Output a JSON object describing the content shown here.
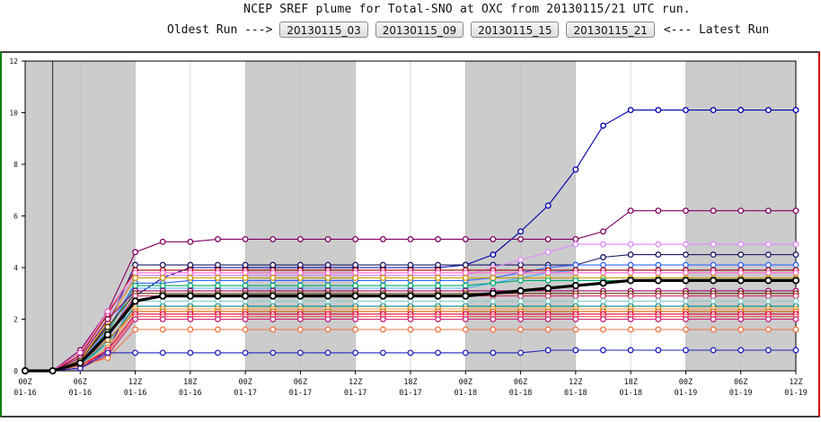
{
  "header": {
    "title": "NCEP SREF plume for Total-SNO at OXC from 20130115/21 UTC run.",
    "oldest_label": "Oldest Run --->",
    "latest_label": "<--- Latest Run",
    "runs": [
      "20130115_03",
      "20130115_09",
      "20130115_15",
      "20130115_21"
    ]
  },
  "colors": {
    "shade": "#cccccc",
    "frame": "#000000",
    "page_border_left": "#008000",
    "page_border_right": "#cc0000",
    "mean": "#000000"
  },
  "chart_data": {
    "type": "line",
    "title": "",
    "xlabel": "",
    "ylabel": "",
    "ylim": [
      0,
      12
    ],
    "yticks": [
      0,
      2,
      4,
      6,
      8,
      10,
      12
    ],
    "x_start_hour": 0,
    "x_step_hours": 3,
    "x_end_hour": 84,
    "x_ticks": [
      {
        "hour": 0,
        "line1": "00Z",
        "line2": "01-16"
      },
      {
        "hour": 6,
        "line1": "06Z",
        "line2": "01-16"
      },
      {
        "hour": 12,
        "line1": "12Z",
        "line2": "01-16"
      },
      {
        "hour": 18,
        "line1": "18Z",
        "line2": "01-16"
      },
      {
        "hour": 24,
        "line1": "00Z",
        "line2": "01-17"
      },
      {
        "hour": 30,
        "line1": "06Z",
        "line2": "01-17"
      },
      {
        "hour": 36,
        "line1": "12Z",
        "line2": "01-17"
      },
      {
        "hour": 42,
        "line1": "18Z",
        "line2": "01-17"
      },
      {
        "hour": 48,
        "line1": "00Z",
        "line2": "01-18"
      },
      {
        "hour": 54,
        "line1": "06Z",
        "line2": "01-18"
      },
      {
        "hour": 60,
        "line1": "12Z",
        "line2": "01-18"
      },
      {
        "hour": 66,
        "line1": "18Z",
        "line2": "01-18"
      },
      {
        "hour": 72,
        "line1": "00Z",
        "line2": "01-19"
      },
      {
        "hour": 78,
        "line1": "06Z",
        "line2": "01-19"
      },
      {
        "hour": 84,
        "line1": "12Z",
        "line2": "01-19"
      }
    ],
    "shaded_spans": [
      [
        0,
        12
      ],
      [
        24,
        36
      ],
      [
        48,
        60
      ],
      [
        72,
        84
      ]
    ],
    "vline_hour": 3,
    "series": [
      {
        "color": "#0000aa",
        "values": [
          0,
          0,
          0.1,
          0.8,
          2.9,
          3.6,
          4.0,
          4.0,
          4.0,
          4.0,
          4.0,
          4.0,
          4.0,
          4.0,
          4.0,
          4.0,
          4.1,
          4.5,
          5.4,
          6.4,
          7.8,
          9.5,
          10.1,
          10.1,
          10.1,
          10.1,
          10.1,
          10.1,
          10.1
        ]
      },
      {
        "color": "#800060",
        "values": [
          0,
          0,
          0.8,
          2.3,
          4.6,
          5.0,
          5.0,
          5.1,
          5.1,
          5.1,
          5.1,
          5.1,
          5.1,
          5.1,
          5.1,
          5.1,
          5.1,
          5.1,
          5.1,
          5.1,
          5.1,
          5.4,
          6.2,
          6.2,
          6.2,
          6.2,
          6.2,
          6.2,
          6.2
        ]
      },
      {
        "color": "#1a1a66",
        "values": [
          0,
          0,
          0.4,
          1.8,
          4.1,
          4.1,
          4.1,
          4.1,
          4.1,
          4.1,
          4.1,
          4.1,
          4.1,
          4.1,
          4.1,
          4.1,
          4.1,
          4.1,
          4.1,
          4.1,
          4.1,
          4.4,
          4.5,
          4.5,
          4.5,
          4.5,
          4.5,
          4.5,
          4.5
        ]
      },
      {
        "color": "#dd88ff",
        "values": [
          0,
          0,
          0.5,
          2.0,
          3.7,
          3.7,
          3.7,
          3.7,
          3.7,
          3.7,
          3.7,
          3.7,
          3.7,
          3.7,
          3.7,
          3.7,
          3.7,
          4.0,
          4.3,
          4.6,
          4.9,
          4.9,
          4.9,
          4.9,
          4.9,
          4.9,
          4.9,
          4.9,
          4.9
        ]
      },
      {
        "color": "#3366ff",
        "values": [
          0,
          0,
          0.3,
          1.6,
          3.4,
          3.4,
          3.5,
          3.5,
          3.5,
          3.5,
          3.5,
          3.5,
          3.5,
          3.5,
          3.5,
          3.5,
          3.5,
          3.6,
          3.8,
          4.0,
          4.1,
          4.1,
          4.1,
          4.1,
          4.1,
          4.1,
          4.1,
          4.1,
          4.1
        ]
      },
      {
        "color": "#44aaff",
        "values": [
          0,
          0,
          0.2,
          1.2,
          3.2,
          3.2,
          3.2,
          3.2,
          3.2,
          3.2,
          3.2,
          3.2,
          3.2,
          3.2,
          3.2,
          3.2,
          3.2,
          3.4,
          3.6,
          3.8,
          3.9,
          3.9,
          3.9,
          3.9,
          3.9,
          3.9,
          3.9,
          3.9,
          3.9
        ]
      },
      {
        "color": "#aa0000",
        "values": [
          0,
          0,
          0.6,
          2.2,
          3.9,
          3.9,
          3.9,
          3.9,
          3.9,
          3.9,
          3.9,
          3.9,
          3.9,
          3.9,
          3.9,
          3.9,
          3.9,
          3.9,
          3.9,
          3.9,
          3.9,
          3.9,
          3.9,
          3.9,
          3.9,
          3.9,
          3.9,
          3.9,
          3.9
        ]
      },
      {
        "color": "#ff66cc",
        "values": [
          0,
          0,
          0.7,
          2.3,
          3.8,
          3.8,
          3.8,
          3.8,
          3.8,
          3.8,
          3.8,
          3.8,
          3.8,
          3.8,
          3.8,
          3.8,
          3.8,
          3.8,
          3.8,
          3.8,
          3.8,
          3.8,
          3.8,
          3.8,
          3.8,
          3.8,
          3.8,
          3.8,
          3.8
        ]
      },
      {
        "color": "#cc9900",
        "values": [
          0,
          0,
          0.4,
          1.9,
          3.6,
          3.6,
          3.6,
          3.6,
          3.6,
          3.6,
          3.6,
          3.6,
          3.6,
          3.6,
          3.6,
          3.6,
          3.6,
          3.6,
          3.6,
          3.6,
          3.6,
          3.6,
          3.6,
          3.6,
          3.6,
          3.6,
          3.6,
          3.6,
          3.6
        ]
      },
      {
        "color": "#00aa66",
        "values": [
          0,
          0,
          0.3,
          1.5,
          3.3,
          3.3,
          3.3,
          3.3,
          3.3,
          3.3,
          3.3,
          3.3,
          3.3,
          3.3,
          3.3,
          3.3,
          3.3,
          3.4,
          3.5,
          3.5,
          3.5,
          3.5,
          3.5,
          3.5,
          3.5,
          3.5,
          3.5,
          3.5,
          3.5
        ]
      },
      {
        "color": "#990066",
        "values": [
          0,
          0,
          0.5,
          2.0,
          3.1,
          3.1,
          3.1,
          3.1,
          3.1,
          3.1,
          3.1,
          3.1,
          3.1,
          3.1,
          3.1,
          3.1,
          3.1,
          3.1,
          3.1,
          3.1,
          3.1,
          3.1,
          3.1,
          3.1,
          3.1,
          3.1,
          3.1,
          3.1,
          3.1
        ]
      },
      {
        "color": "#663300",
        "values": [
          0,
          0,
          0.4,
          1.7,
          3.0,
          3.0,
          3.0,
          3.0,
          3.0,
          3.0,
          3.0,
          3.0,
          3.0,
          3.0,
          3.0,
          3.0,
          3.0,
          3.0,
          3.0,
          3.0,
          3.0,
          3.0,
          3.0,
          3.0,
          3.0,
          3.0,
          3.0,
          3.0,
          3.0
        ]
      },
      {
        "color": "#cc3366",
        "values": [
          0,
          0,
          0.3,
          1.4,
          2.9,
          2.9,
          2.9,
          2.9,
          2.9,
          2.9,
          2.9,
          2.9,
          2.9,
          2.9,
          2.9,
          2.9,
          2.9,
          2.9,
          2.9,
          2.9,
          2.9,
          2.9,
          2.9,
          2.9,
          2.9,
          2.9,
          2.9,
          2.9,
          2.9
        ]
      },
      {
        "color": "#008888",
        "values": [
          0,
          0,
          0.2,
          1.1,
          2.5,
          2.5,
          2.5,
          2.5,
          2.5,
          2.5,
          2.5,
          2.5,
          2.5,
          2.5,
          2.5,
          2.5,
          2.5,
          2.5,
          2.5,
          2.5,
          2.5,
          2.5,
          2.5,
          2.5,
          2.5,
          2.5,
          2.5,
          2.5,
          2.5
        ]
      },
      {
        "color": "#88cccc",
        "values": [
          0,
          0,
          0.2,
          1.0,
          2.7,
          2.7,
          2.7,
          2.7,
          2.7,
          2.7,
          2.7,
          2.7,
          2.7,
          2.7,
          2.7,
          2.7,
          2.7,
          2.7,
          2.7,
          2.7,
          2.7,
          2.7,
          2.7,
          2.7,
          2.7,
          2.7,
          2.7,
          2.7,
          2.7
        ]
      },
      {
        "color": "#ff9933",
        "values": [
          0,
          0,
          0.2,
          0.9,
          2.4,
          2.4,
          2.4,
          2.4,
          2.4,
          2.4,
          2.4,
          2.4,
          2.4,
          2.4,
          2.4,
          2.4,
          2.4,
          2.4,
          2.4,
          2.4,
          2.4,
          2.4,
          2.4,
          2.4,
          2.4,
          2.4,
          2.4,
          2.4,
          2.4
        ]
      },
      {
        "color": "#cc6600",
        "values": [
          0,
          0,
          0.3,
          1.2,
          2.3,
          2.3,
          2.3,
          2.3,
          2.3,
          2.3,
          2.3,
          2.3,
          2.3,
          2.3,
          2.3,
          2.3,
          2.3,
          2.3,
          2.3,
          2.3,
          2.3,
          2.3,
          2.3,
          2.3,
          2.3,
          2.3,
          2.3,
          2.3,
          2.3
        ]
      },
      {
        "color": "#dd0044",
        "values": [
          0,
          0,
          0.2,
          0.8,
          2.2,
          2.2,
          2.2,
          2.2,
          2.2,
          2.2,
          2.2,
          2.2,
          2.2,
          2.2,
          2.2,
          2.2,
          2.2,
          2.2,
          2.2,
          2.2,
          2.2,
          2.2,
          2.2,
          2.2,
          2.2,
          2.2,
          2.2,
          2.2,
          2.2
        ]
      },
      {
        "color": "#ff5555",
        "values": [
          0,
          0,
          0.2,
          0.7,
          2.1,
          2.1,
          2.1,
          2.1,
          2.1,
          2.1,
          2.1,
          2.1,
          2.1,
          2.1,
          2.1,
          2.1,
          2.1,
          2.1,
          2.1,
          2.1,
          2.1,
          2.1,
          2.1,
          2.1,
          2.1,
          2.1,
          2.1,
          2.1,
          2.1
        ]
      },
      {
        "color": "#cc2277",
        "values": [
          0,
          0,
          0.1,
          0.6,
          2.0,
          2.0,
          2.0,
          2.0,
          2.0,
          2.0,
          2.0,
          2.0,
          2.0,
          2.0,
          2.0,
          2.0,
          2.0,
          2.0,
          2.0,
          2.0,
          2.0,
          2.0,
          2.0,
          2.0,
          2.0,
          2.0,
          2.0,
          2.0,
          2.0
        ]
      },
      {
        "color": "#ee7744",
        "values": [
          0,
          0,
          0.2,
          0.5,
          1.6,
          1.6,
          1.6,
          1.6,
          1.6,
          1.6,
          1.6,
          1.6,
          1.6,
          1.6,
          1.6,
          1.6,
          1.6,
          1.6,
          1.6,
          1.6,
          1.6,
          1.6,
          1.6,
          1.6,
          1.6,
          1.6,
          1.6,
          1.6,
          1.6
        ]
      },
      {
        "color": "#2222bb",
        "values": [
          0,
          0,
          0.1,
          0.7,
          0.7,
          0.7,
          0.7,
          0.7,
          0.7,
          0.7,
          0.7,
          0.7,
          0.7,
          0.7,
          0.7,
          0.7,
          0.7,
          0.7,
          0.7,
          0.8,
          0.8,
          0.8,
          0.8,
          0.8,
          0.8,
          0.8,
          0.8,
          0.8,
          0.8
        ]
      },
      {
        "color": "#000000",
        "name_hidden": true,
        "values": [
          0,
          0,
          0.3,
          1.4,
          2.7,
          2.9,
          2.9,
          2.9,
          2.9,
          2.9,
          2.9,
          2.9,
          2.9,
          2.9,
          2.9,
          2.9,
          2.9,
          3.0,
          3.1,
          3.2,
          3.3,
          3.4,
          3.5,
          3.5,
          3.5,
          3.5,
          3.5,
          3.5,
          3.5
        ],
        "mean": true
      }
    ]
  }
}
